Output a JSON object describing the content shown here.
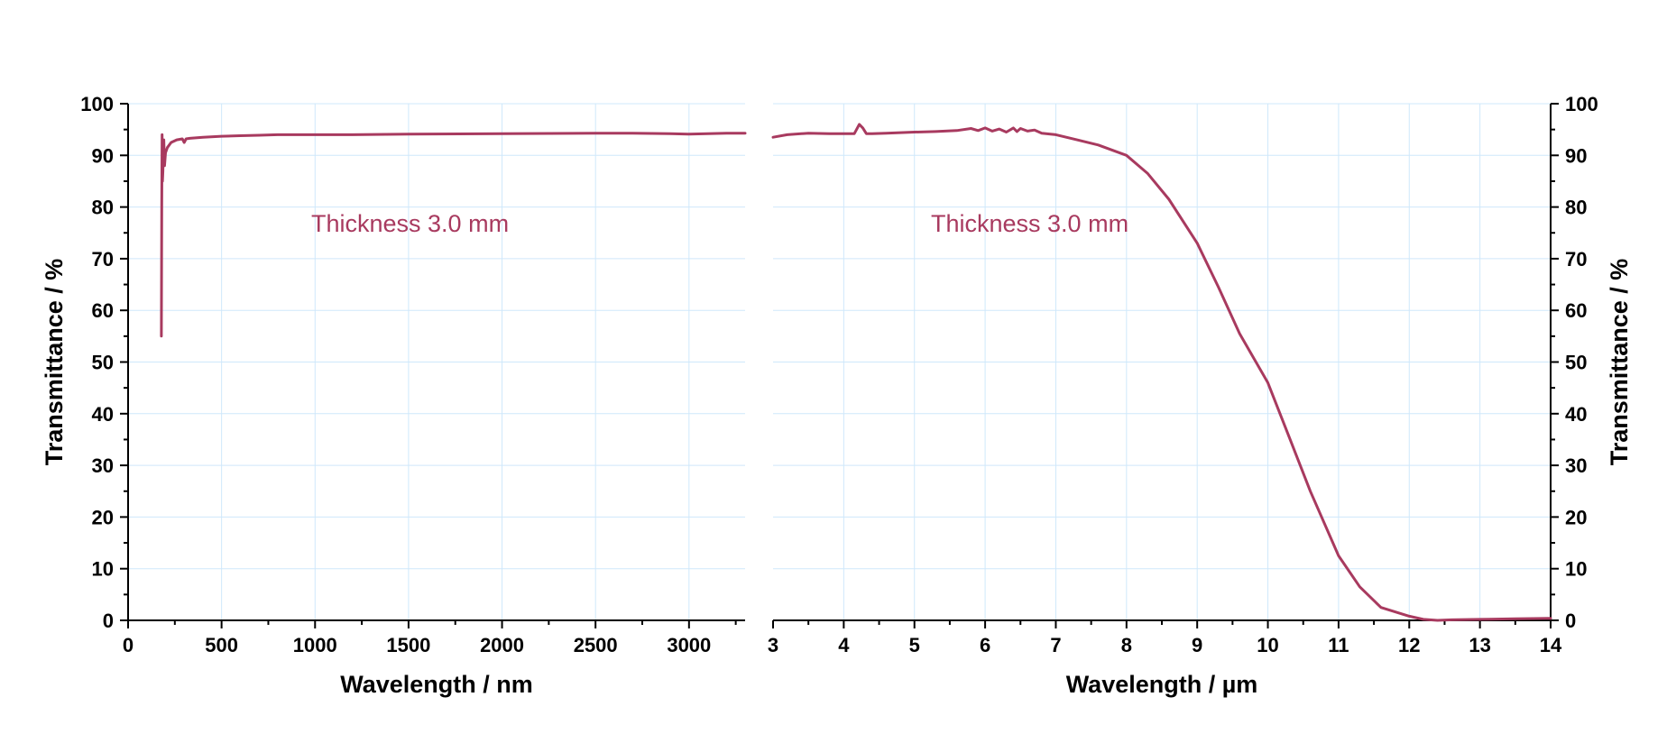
{
  "colors": {
    "series": "#a83a5f",
    "grid": "#cfe8fb",
    "axis": "#000000"
  },
  "chart_data": [
    {
      "type": "line",
      "xlabel": "Wavelength / nm",
      "ylabel": "Transmittance / %",
      "xlim": [
        0,
        3300
      ],
      "ylim": [
        0,
        100
      ],
      "xticks": [
        0,
        500,
        1000,
        1500,
        2000,
        2500,
        3000
      ],
      "xminor": [
        250,
        750,
        1250,
        1750,
        2250,
        2750,
        3250
      ],
      "yticks": [
        0,
        10,
        20,
        30,
        40,
        50,
        60,
        70,
        80,
        90,
        100
      ],
      "grid": true,
      "annotation": "Thickness 3.0 mm",
      "series": [
        {
          "x": [
            178,
            180,
            182,
            183,
            184,
            186,
            188,
            191,
            195,
            200,
            210,
            230,
            260,
            290,
            300,
            310,
            330,
            400,
            500,
            600,
            700,
            800,
            900,
            1000,
            1200,
            1500,
            2000,
            2500,
            2700,
            2900,
            3000,
            3100,
            3200,
            3300
          ],
          "y": [
            55,
            80,
            94.0,
            90,
            85,
            87,
            91,
            93,
            88,
            90.5,
            91.5,
            92.5,
            93,
            93.2,
            92.5,
            93.2,
            93.3,
            93.5,
            93.7,
            93.8,
            93.9,
            94.0,
            94.0,
            94.0,
            94.0,
            94.1,
            94.2,
            94.3,
            94.3,
            94.2,
            94.1,
            94.2,
            94.3,
            94.3
          ]
        }
      ]
    },
    {
      "type": "line",
      "xlabel": "Wavelength / µm",
      "ylabel": "Transmittance / %",
      "xlim": [
        3,
        14
      ],
      "ylim": [
        0,
        100
      ],
      "xticks": [
        3,
        4,
        5,
        6,
        7,
        8,
        9,
        10,
        11,
        12,
        13,
        14
      ],
      "xminor": [
        3.5,
        4.5,
        5.5,
        6.5,
        7.5,
        8.5,
        9.5,
        10.5,
        11.5,
        12.5,
        13.5
      ],
      "yticks": [
        0,
        10,
        20,
        30,
        40,
        50,
        60,
        70,
        80,
        90,
        100
      ],
      "grid": true,
      "annotation": "Thickness 3.0 mm",
      "series": [
        {
          "x": [
            3.0,
            3.2,
            3.5,
            3.8,
            4.0,
            4.15,
            4.22,
            4.27,
            4.32,
            4.4,
            4.6,
            5.0,
            5.3,
            5.6,
            5.8,
            5.9,
            6.0,
            6.1,
            6.2,
            6.3,
            6.4,
            6.45,
            6.5,
            6.6,
            6.7,
            6.8,
            7.0,
            7.3,
            7.6,
            8.0,
            8.3,
            8.6,
            9.0,
            9.3,
            9.6,
            10.0,
            10.3,
            10.6,
            11.0,
            11.3,
            11.6,
            12.0,
            12.2,
            12.4,
            12.6,
            13.0,
            13.5,
            14.0
          ],
          "y": [
            93.5,
            94.0,
            94.3,
            94.2,
            94.2,
            94.2,
            96.0,
            95.3,
            94.2,
            94.2,
            94.3,
            94.5,
            94.6,
            94.8,
            95.2,
            94.8,
            95.3,
            94.7,
            95.1,
            94.5,
            95.3,
            94.6,
            95.2,
            94.7,
            94.9,
            94.3,
            94.0,
            93.0,
            92.0,
            90.0,
            86.5,
            81.5,
            73.0,
            64.5,
            55.5,
            46.0,
            35.5,
            25.0,
            12.5,
            6.5,
            2.5,
            0.8,
            0.2,
            0.0,
            0.1,
            0.2,
            0.3,
            0.4
          ]
        }
      ]
    }
  ]
}
